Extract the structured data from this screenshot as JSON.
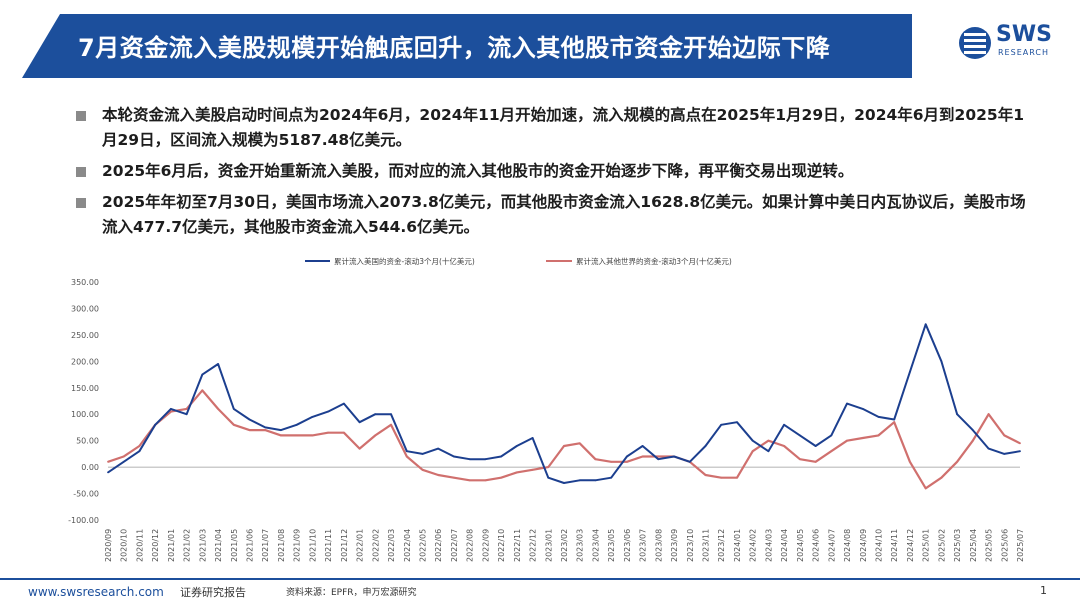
{
  "header": {
    "title": "7月资金流入美股规模开始触底回升，流入其他股市资金开始边际下降",
    "logo_text": "SWS",
    "logo_sub": "RESEARCH",
    "banner_color": "#1c4f9c"
  },
  "bullets": [
    "本轮资金流入美股启动时间点为2024年6月，2024年11月开始加速，流入规模的高点在2025年1月29日，2024年6月到2025年1月29日，区间流入规模为5187.48亿美元。",
    "2025年6月后，资金开始重新流入美股，而对应的流入其他股市的资金开始逐步下降，再平衡交易出现逆转。",
    "2025年年初至7月30日，美国市场流入2073.8亿美元，而其他股市资金流入1628.8亿美元。如果计算中美日内瓦协议后，美股市场流入477.7亿美元，其他股市资金流入544.6亿美元。"
  ],
  "chart_data": {
    "type": "line",
    "ylim": [
      -100,
      350
    ],
    "yticks": [
      "350.00",
      "300.00",
      "250.00",
      "200.00",
      "150.00",
      "100.00",
      "50.00",
      "0.00",
      "-50.00",
      "-100.00"
    ],
    "x": [
      "2020/09",
      "2020/10",
      "2020/11",
      "2020/12",
      "2021/01",
      "2021/02",
      "2021/03",
      "2021/04",
      "2021/05",
      "2021/06",
      "2021/07",
      "2021/08",
      "2021/09",
      "2021/10",
      "2021/11",
      "2021/12",
      "2022/01",
      "2022/02",
      "2022/03",
      "2022/04",
      "2022/05",
      "2022/06",
      "2022/07",
      "2022/08",
      "2022/09",
      "2022/10",
      "2022/11",
      "2022/12",
      "2023/01",
      "2023/02",
      "2023/03",
      "2023/04",
      "2023/05",
      "2023/06",
      "2023/07",
      "2023/08",
      "2023/09",
      "2023/10",
      "2023/11",
      "2023/12",
      "2024/01",
      "2024/02",
      "2024/03",
      "2024/04",
      "2024/05",
      "2024/06",
      "2024/07",
      "2024/08",
      "2024/09",
      "2024/10",
      "2024/11",
      "2024/12",
      "2025/01",
      "2025/02",
      "2025/03",
      "2025/04",
      "2025/05",
      "2025/06",
      "2025/07"
    ],
    "series": [
      {
        "name": "累计流入美国的资金-滚动3个月(十亿美元)",
        "color": "#1c3f8f",
        "values": [
          -10,
          10,
          30,
          80,
          110,
          100,
          175,
          195,
          110,
          90,
          75,
          70,
          80,
          95,
          105,
          120,
          85,
          100,
          100,
          30,
          25,
          35,
          20,
          15,
          15,
          20,
          40,
          55,
          -20,
          -30,
          -25,
          -25,
          -20,
          20,
          40,
          15,
          20,
          10,
          40,
          80,
          85,
          50,
          30,
          80,
          60,
          40,
          60,
          120,
          110,
          95,
          90,
          180,
          270,
          200,
          100,
          70,
          35,
          25,
          30
        ]
      },
      {
        "name": "累计流入其他世界的资金-滚动3个月(十亿美元)",
        "color": "#d0706e",
        "values": [
          10,
          20,
          40,
          80,
          105,
          110,
          145,
          110,
          80,
          70,
          70,
          60,
          60,
          60,
          65,
          65,
          35,
          60,
          80,
          20,
          -5,
          -15,
          -20,
          -25,
          -25,
          -20,
          -10,
          -5,
          0,
          40,
          45,
          15,
          10,
          10,
          20,
          20,
          20,
          10,
          -15,
          -20,
          -20,
          30,
          50,
          40,
          15,
          10,
          30,
          50,
          55,
          60,
          85,
          10,
          -40,
          -20,
          10,
          50,
          100,
          60,
          45
        ]
      }
    ]
  },
  "footer": {
    "url": "www.swsresearch.com",
    "doc_type": "证券研究报告",
    "source": "资料来源：EPFR，申万宏源研究",
    "page": "1"
  }
}
